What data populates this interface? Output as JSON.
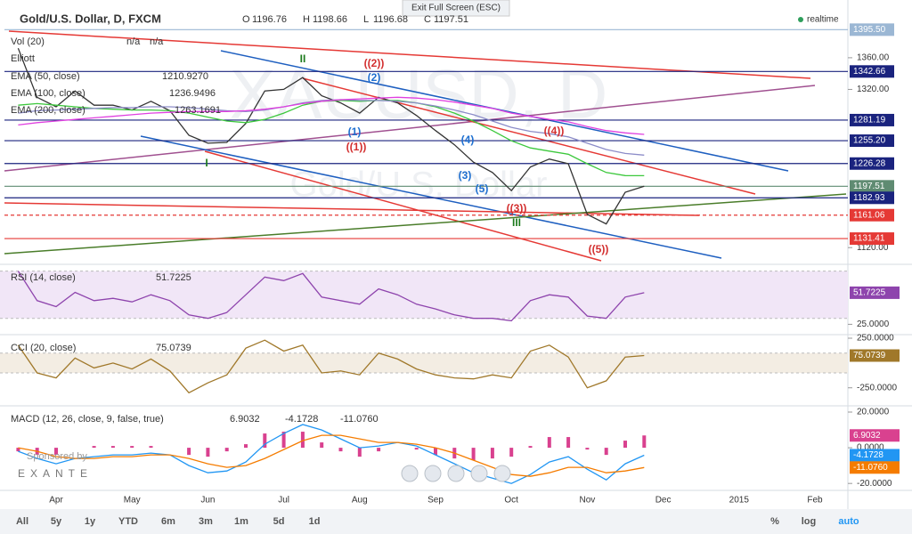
{
  "toolbar": {
    "exit_fullscreen": "Exit Full Screen (ESC)",
    "realtime": "realtime"
  },
  "header": {
    "symbol": "Gold/U.S. Dollar, D, FXCM",
    "ohlc": [
      {
        "key": "O",
        "value": 1196.76
      },
      {
        "key": "H",
        "value": 1198.66
      },
      {
        "key": "L",
        "value": 1196.68
      },
      {
        "key": "C",
        "value": 1197.51
      }
    ],
    "watermark": [
      "XAUUSD, D",
      "Gold/U.S. Dollar"
    ],
    "vol": {
      "name": "Vol (20)",
      "values": [
        "n/a",
        "n/a"
      ]
    },
    "elliott": "Elliott"
  },
  "annotations": [
    {
      "text": "II",
      "color": "#1e7b1e"
    },
    {
      "text": "((2))",
      "color": "#d32f2f"
    },
    {
      "text": "(2)",
      "color": "#1e6fd0"
    },
    {
      "text": "(1)",
      "color": "#1e6fd0"
    },
    {
      "text": "((1))",
      "color": "#d32f2f"
    },
    {
      "text": "I",
      "color": "#1e7b1e"
    },
    {
      "text": "(4)",
      "color": "#1e6fd0"
    },
    {
      "text": "((4))",
      "color": "#d32f2f"
    },
    {
      "text": "(3)",
      "color": "#1e6fd0"
    },
    {
      "text": "(5)",
      "color": "#1e6fd0"
    },
    {
      "text": "((3))",
      "color": "#d32f2f"
    },
    {
      "text": "III",
      "color": "#1e7b1e"
    },
    {
      "text": "((5))",
      "color": "#d32f2f"
    }
  ],
  "chart_data": [
    {
      "type": "line",
      "categories": [
        null,
        null,
        "Apr",
        null,
        null,
        null,
        "May",
        null,
        null,
        null,
        "Jun",
        null,
        null,
        null,
        "Jul",
        null,
        null,
        null,
        "Aug",
        null,
        null,
        null,
        "Sep",
        null,
        null,
        null,
        "Oct",
        null,
        null,
        null,
        "Nov",
        null,
        null,
        null,
        "Dec",
        null,
        null,
        null,
        "2015",
        null,
        null,
        null,
        "Feb",
        null
      ],
      "ylim": [
        1100,
        1397
      ],
      "yticks": [
        {
          "value": 1360,
          "label": "1360.00"
        },
        {
          "value": 1320,
          "label": "1320.00"
        },
        {
          "value": 1120,
          "label": "1120.00"
        }
      ],
      "levels": [
        {
          "value": 1395.5,
          "label": "1395.50",
          "color": "#9bb7d4"
        },
        {
          "value": 1342.66,
          "label": "1342.66",
          "color": "#1a237e"
        },
        {
          "value": 1281.19,
          "label": "1281.19",
          "color": "#1a237e"
        },
        {
          "value": 1255.2,
          "label": "1255.20",
          "color": "#1a237e"
        },
        {
          "value": 1226.28,
          "label": "1226.28",
          "color": "#1a237e"
        },
        {
          "value": 1197.51,
          "label": "1197.51",
          "color": "#5f8b72"
        },
        {
          "value": 1182.93,
          "label": "1182.93",
          "color": "#1a237e"
        },
        {
          "value": 1161.06,
          "label": "1161.06",
          "color": "#e53935",
          "dashed": true
        },
        {
          "value": 1131.41,
          "label": "1131.41",
          "color": "#e53935"
        }
      ],
      "series": [
        {
          "color": "#333333",
          "values": [
            1372,
            1310,
            1298,
            1318,
            1300,
            1300,
            1294,
            1305,
            1293,
            1262,
            1252,
            1253,
            1277,
            1318,
            1320,
            1335,
            1312,
            1303,
            1290,
            1310,
            1303,
            1287,
            1268,
            1250,
            1228,
            1215,
            1192,
            1222,
            1232,
            1226,
            1162,
            1150,
            1190,
            1197.51,
            null,
            null,
            null,
            null,
            null,
            null,
            null,
            null,
            null,
            null
          ]
        },
        {
          "name": "EMA (50, close)",
          "readout": "1210.9270",
          "color": "#3cc83c",
          "values": [
            1300,
            1302,
            1300,
            1298,
            1296,
            1295,
            1294,
            1294,
            1293,
            1290,
            1285,
            1280,
            1278,
            1282,
            1290,
            1300,
            1305,
            1306,
            1305,
            1306,
            1306,
            1303,
            1298,
            1290,
            1280,
            1268,
            1255,
            1246,
            1242,
            1238,
            1226,
            1215,
            1211,
            1210.93,
            null,
            null,
            null,
            null,
            null,
            null,
            null,
            null,
            null,
            null
          ]
        },
        {
          "name": "EMA (100, close)",
          "readout": "1236.9496",
          "color": "#8c8cc8",
          "values": [
            1290,
            1293,
            1294,
            1295,
            1296,
            1297,
            1297,
            1298,
            1298,
            1297,
            1295,
            1293,
            1292,
            1294,
            1298,
            1303,
            1306,
            1307,
            1306,
            1306,
            1305,
            1303,
            1299,
            1294,
            1288,
            1280,
            1272,
            1267,
            1264,
            1260,
            1252,
            1244,
            1239,
            1236.95,
            null,
            null,
            null,
            null,
            null,
            null,
            null,
            null,
            null,
            null
          ]
        },
        {
          "name": "EMA (200, close)",
          "readout": "1263.1691",
          "color": "#e040e0",
          "values": [
            1275,
            1278,
            1280,
            1282,
            1284,
            1286,
            1288,
            1290,
            1291,
            1292,
            1292,
            1292,
            1293,
            1295,
            1298,
            1302,
            1305,
            1307,
            1308,
            1309,
            1310,
            1309,
            1307,
            1304,
            1300,
            1296,
            1290,
            1286,
            1282,
            1279,
            1273,
            1268,
            1265,
            1263.17,
            null,
            null,
            null,
            null,
            null,
            null,
            null,
            null,
            null,
            null
          ]
        }
      ]
    },
    {
      "type": "line",
      "title": "RSI (14, close)",
      "ylim": [
        17,
        75
      ],
      "bands": [
        30,
        70
      ],
      "band_color": "#f1e6f7",
      "yticks": [
        {
          "value": 25,
          "label": "25.0000"
        }
      ],
      "series": [
        {
          "readout": "51.7225",
          "color": "#8e44ad",
          "values": [
            70,
            45,
            40,
            52,
            45,
            47,
            44,
            50,
            45,
            33,
            30,
            35,
            50,
            65,
            62,
            68,
            48,
            45,
            42,
            55,
            50,
            42,
            38,
            33,
            30,
            30,
            28,
            45,
            50,
            48,
            32,
            30,
            48,
            51.7225,
            null,
            null,
            null,
            null,
            null,
            null,
            null,
            null,
            null,
            null
          ]
        }
      ]
    },
    {
      "type": "line",
      "title": "CCI (20, close)",
      "ylim": [
        -423,
        277
      ],
      "bands": [
        -100,
        100
      ],
      "band_color": "#f3ede3",
      "yticks": [
        {
          "value": 250,
          "label": "250.0000"
        },
        {
          "value": -250,
          "label": "-250.0000"
        }
      ],
      "series": [
        {
          "readout": "75.0739",
          "color": "#a0782a",
          "values": [
            180,
            -100,
            -150,
            50,
            -50,
            0,
            -60,
            40,
            -80,
            -300,
            -200,
            -120,
            150,
            230,
            120,
            180,
            -100,
            -80,
            -120,
            100,
            40,
            -60,
            -120,
            -150,
            -160,
            -120,
            -150,
            120,
            180,
            60,
            -250,
            -180,
            60,
            75.0739,
            null,
            null,
            null,
            null,
            null,
            null,
            null,
            null,
            null,
            null
          ]
        }
      ]
    },
    {
      "type": "combo",
      "title": "MACD (12, 26, close, 9, false, true)",
      "ylim": [
        -23.4,
        23
      ],
      "yticks": [
        {
          "value": 20,
          "label": "20.0000"
        },
        {
          "value": 0,
          "label": "0.0000"
        },
        {
          "value": -20,
          "label": "-20.0000"
        }
      ],
      "series": [
        {
          "kind": "bar",
          "readout": "6.9032",
          "color": "#d9418f",
          "values": [
            -2,
            -4,
            -4,
            0,
            1,
            1,
            1,
            1,
            0,
            -4,
            -5,
            -2,
            2,
            8,
            9,
            9,
            3,
            -2,
            -5,
            -2,
            0,
            -1,
            -4,
            -6,
            -7,
            -6,
            -5,
            1,
            6,
            6,
            -1,
            -4,
            4,
            6.9032,
            null,
            null,
            null,
            null,
            null,
            null,
            null,
            null,
            null,
            null
          ]
        },
        {
          "kind": "line",
          "readout": "-4.1728",
          "color": "#2196f3",
          "values": [
            -2,
            -6,
            -9,
            -6,
            -5,
            -4,
            -4,
            -3,
            -4,
            -10,
            -14,
            -13,
            -8,
            2,
            8,
            13,
            10,
            5,
            0,
            1,
            3,
            1,
            -4,
            -9,
            -14,
            -17,
            -20,
            -15,
            -8,
            -5,
            -12,
            -18,
            -9,
            -4.1728,
            null,
            null,
            null,
            null,
            null,
            null,
            null,
            null,
            null,
            null
          ]
        },
        {
          "kind": "line",
          "readout": "-11.0760",
          "color": "#f57c00",
          "values": [
            0,
            -2,
            -5,
            -6,
            -6,
            -5,
            -5,
            -4,
            -4,
            -6,
            -9,
            -11,
            -10,
            -6,
            -1,
            4,
            7,
            7,
            5,
            3,
            3,
            2,
            0,
            -3,
            -7,
            -11,
            -15,
            -16,
            -14,
            -11,
            -11,
            -14,
            -13,
            -11.076,
            null,
            null,
            null,
            null,
            null,
            null,
            null,
            null,
            null,
            null
          ]
        }
      ]
    }
  ],
  "sponsor": {
    "text": "Sponsored by",
    "brand": "EXANTE"
  },
  "bottom_bar": {
    "ranges": [
      "All",
      "5y",
      "1y",
      "YTD",
      "6m",
      "3m",
      "1m",
      "5d",
      "1d"
    ],
    "options": [
      "%",
      "log",
      "auto"
    ]
  }
}
